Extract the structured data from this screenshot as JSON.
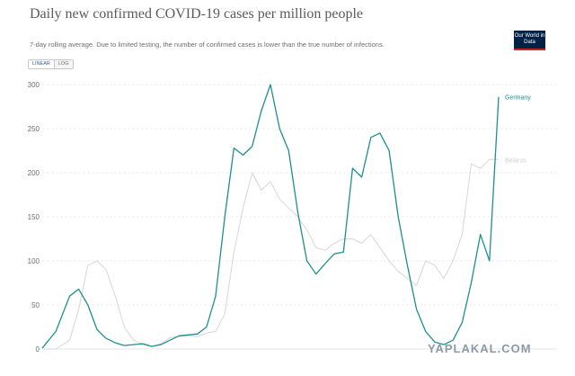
{
  "header": {
    "title": "Daily new confirmed COVID-19 cases per million people",
    "subtitle": "7-day rolling average. Due to limited testing, the number of confirmed cases is lower than the true number of infections.",
    "logo_text": "Our World in Data"
  },
  "controls": {
    "linear_label": "LINEAR",
    "log_label": "LOG"
  },
  "watermark": "YAPLAKAL.COM",
  "colors": {
    "germany": "#1f8f8f",
    "belarus": "#d6d6d6",
    "grid": "#e6e6e6",
    "tick": "#6e6e6e"
  },
  "chart_data": {
    "type": "line",
    "title": "Daily new confirmed COVID-19 cases per million people",
    "xlabel": "",
    "ylabel": "",
    "ylim": [
      0,
      300
    ],
    "yticks": [
      0,
      50,
      100,
      150,
      200,
      250,
      300
    ],
    "grid": true,
    "legend": "end-of-line labels",
    "x": [
      0,
      3,
      6,
      8,
      10,
      12,
      14,
      16,
      18,
      20,
      22,
      24,
      26,
      28,
      30,
      32,
      34,
      36,
      38,
      40,
      42,
      44,
      46,
      48,
      50,
      52,
      54,
      56,
      58,
      60,
      62,
      64,
      66,
      68,
      70,
      72,
      74,
      76,
      78,
      80,
      82,
      84,
      86,
      88,
      90,
      92,
      94,
      96,
      98,
      100
    ],
    "series": [
      {
        "name": "Germany",
        "values": [
          1,
          20,
          60,
          68,
          50,
          22,
          12,
          7,
          4,
          5,
          6,
          3,
          5,
          10,
          15,
          16,
          17,
          25,
          60,
          150,
          228,
          220,
          230,
          270,
          300,
          250,
          225,
          155,
          100,
          85,
          97,
          108,
          110,
          205,
          195,
          240,
          245,
          225,
          150,
          95,
          45,
          20,
          8,
          5,
          10,
          30,
          75,
          130,
          100,
          286
        ]
      },
      {
        "name": "Belarus",
        "values": [
          0,
          0,
          10,
          45,
          95,
          100,
          90,
          60,
          25,
          10,
          5,
          3,
          6,
          13,
          14,
          15,
          14,
          18,
          20,
          40,
          110,
          160,
          200,
          180,
          190,
          170,
          160,
          150,
          135,
          115,
          112,
          120,
          125,
          125,
          120,
          130,
          115,
          100,
          88,
          80,
          72,
          100,
          95,
          80,
          100,
          130,
          210,
          205,
          215,
          215
        ]
      }
    ]
  }
}
